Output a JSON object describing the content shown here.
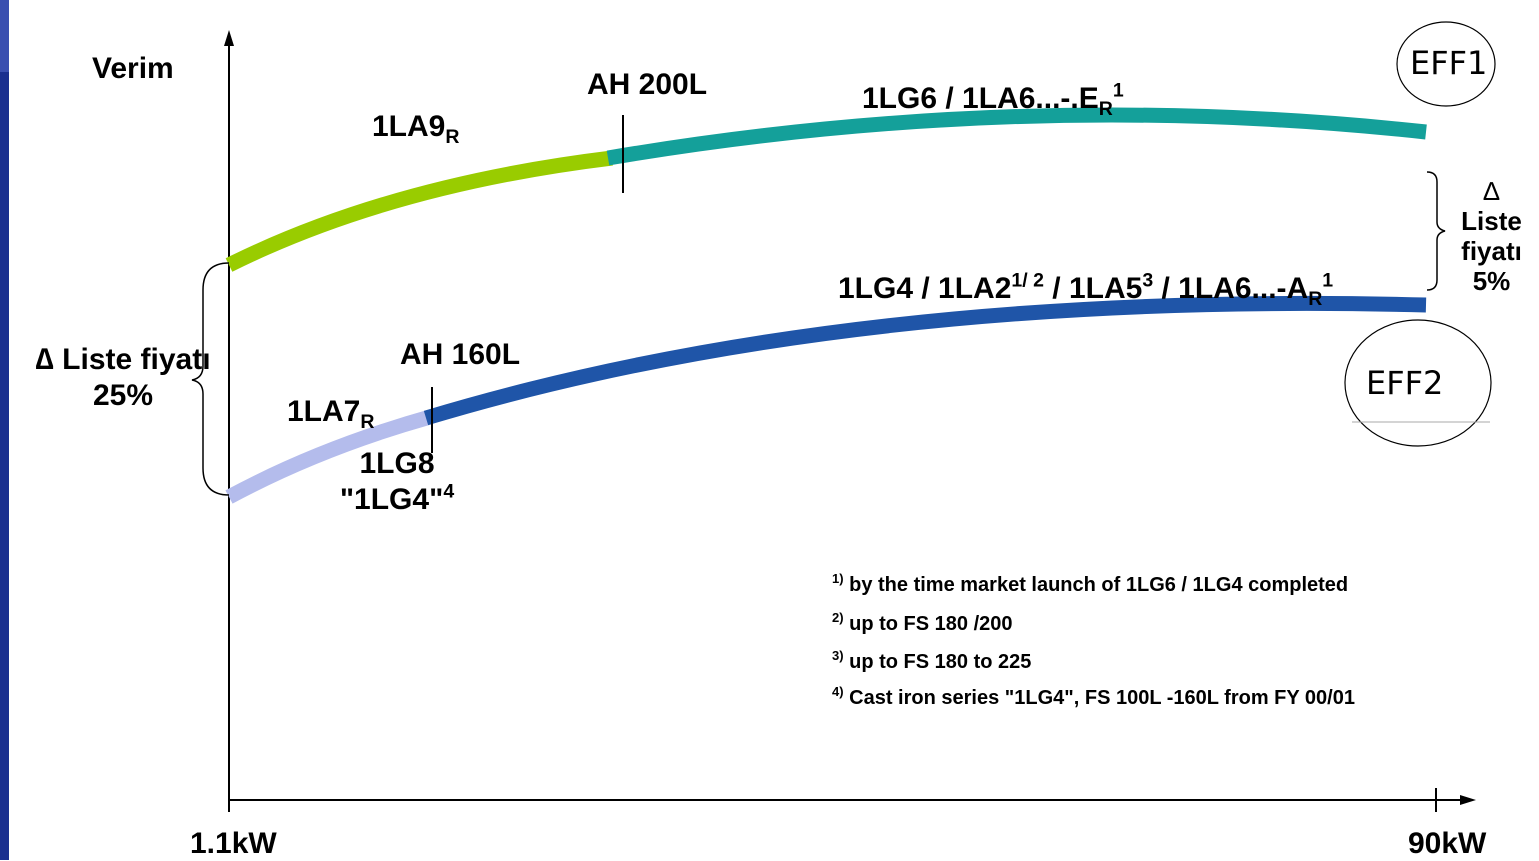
{
  "colors": {
    "left_bar": "#1a2f8f",
    "light_green": "#99cc00",
    "teal": "#14a09a",
    "light_blue": "#b4bcec",
    "dark_blue": "#1f55a8",
    "axis": "#000000"
  },
  "axes": {
    "y_label": "Verim",
    "x_start": "1.1kW",
    "x_end": "90kW"
  },
  "badges": {
    "eff1": "EFF1",
    "eff2": "EFF2"
  },
  "upper_curve": {
    "breakpoint_label": "AH 200L",
    "left_series_main": "1LA9",
    "left_series_sub": "R",
    "right_series_main": "1LG6 / 1LA6...-.E",
    "right_series_sub": "R",
    "right_series_sup": "1"
  },
  "lower_curve": {
    "breakpoint_label": "AH 160L",
    "left_series_main": "1LA7",
    "left_series_sub": "R",
    "left_series2_line1": "1LG8",
    "left_series2_line2": "\"1LG4\"",
    "left_series2_sup": "4",
    "right_series": {
      "p1": "1LG4 / 1LA2",
      "s1": "1/ 2",
      "p2": " / 1LA5",
      "s2": "3",
      "p3": " / 1LA6...-A",
      "sub3": "R",
      "s3": "1"
    }
  },
  "price_delta_left": {
    "symbol": "∆",
    "line1": "Liste fiyatı",
    "line2": "25%"
  },
  "price_delta_right": {
    "symbol": "∆",
    "line1": "Liste",
    "line2": "fiyatı",
    "line3": "5%"
  },
  "footnotes": [
    {
      "mark": "1)",
      "text": "by the time market launch of 1LG6 / 1LG4  completed"
    },
    {
      "mark": "2)",
      "text": "up to FS 180 /200"
    },
    {
      "mark": "3)",
      "text": "up to FS 180 to 225"
    },
    {
      "mark": "4)",
      "text": "Cast iron series \"1LG4\", FS 100L -160L from FY 00/01"
    }
  ]
}
